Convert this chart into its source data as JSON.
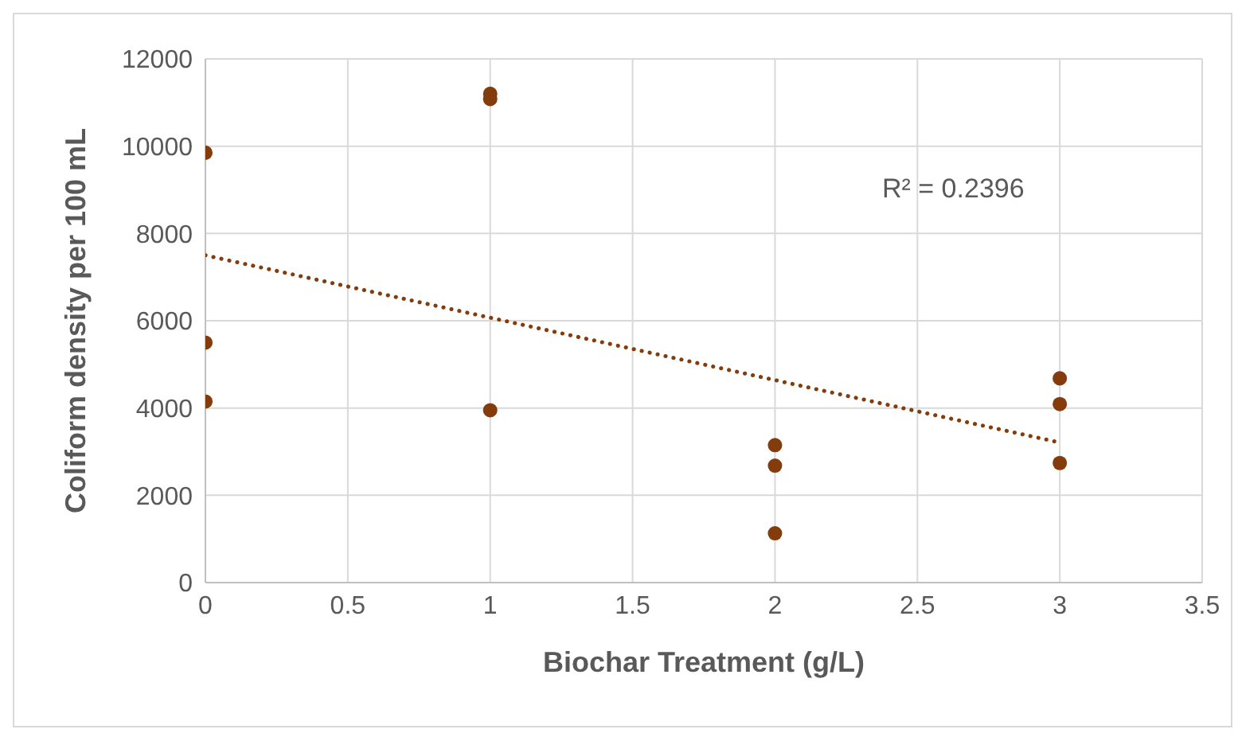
{
  "chart_data": {
    "type": "scatter",
    "xlabel": "Biochar Treatment (g/L)",
    "ylabel": "Coliform density per 100 mL",
    "xlim": [
      0,
      3.5
    ],
    "xticks": [
      0,
      0.5,
      1,
      1.5,
      2,
      2.5,
      3,
      3.5
    ],
    "ylim": [
      0,
      12000
    ],
    "yticks": [
      0,
      2000,
      4000,
      6000,
      8000,
      10000,
      12000
    ],
    "grid": true,
    "legend": false,
    "marker": "circle",
    "series": [
      {
        "color": "#843c0c",
        "x": [
          0,
          0,
          0,
          1,
          1,
          1,
          2,
          2,
          2,
          3,
          3,
          3
        ],
        "values": [
          9850,
          5500,
          4150,
          11200,
          11080,
          3950,
          3150,
          2680,
          1130,
          4680,
          4090,
          2740
        ]
      },
      {
        "type": "line",
        "color": "#843c0c",
        "line_style": "dotted",
        "marker": "none",
        "x": [
          0,
          3
        ],
        "values": [
          7500,
          3210
        ]
      }
    ],
    "annotations": [
      "R² = 0.2396"
    ]
  }
}
